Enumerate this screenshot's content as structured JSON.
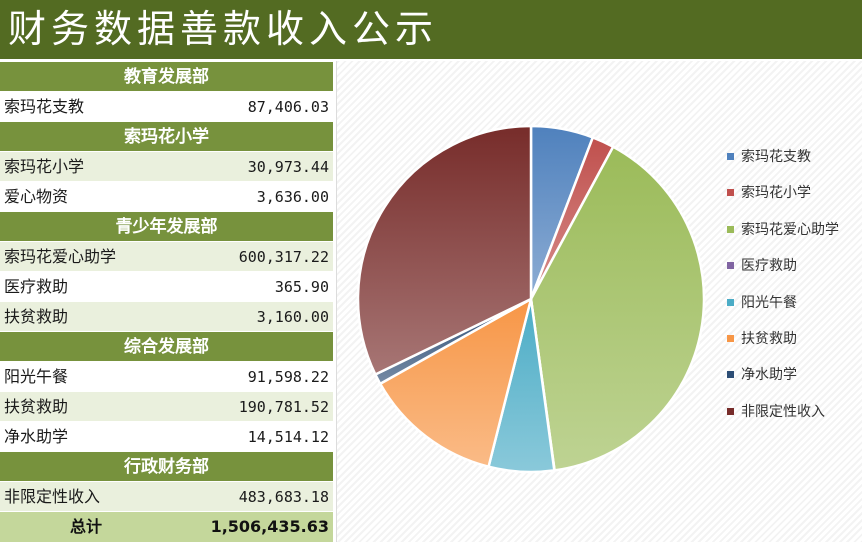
{
  "title": "财务数据善款收入公示",
  "table": {
    "sections": [
      {
        "header": "教育发展部",
        "rows": [
          {
            "name": "索玛花支教",
            "value": "87,406.03"
          }
        ]
      },
      {
        "header": "索玛花小学",
        "rows": [
          {
            "name": "索玛花小学",
            "value": "30,973.44"
          },
          {
            "name": "爱心物资",
            "value": "3,636.00"
          }
        ]
      },
      {
        "header": "青少年发展部",
        "rows": [
          {
            "name": "索玛花爱心助学",
            "value": "600,317.22"
          },
          {
            "name": "医疗救助",
            "value": "365.90"
          },
          {
            "name": "扶贫救助",
            "value": "3,160.00"
          }
        ]
      },
      {
        "header": "综合发展部",
        "rows": [
          {
            "name": "阳光午餐",
            "value": "91,598.22"
          },
          {
            "name": "扶贫救助",
            "value": "190,781.52"
          },
          {
            "name": "净水助学",
            "value": "14,514.12"
          }
        ]
      },
      {
        "header": "行政财务部",
        "rows": [
          {
            "name": "非限定性收入",
            "value": "483,683.18"
          }
        ]
      }
    ],
    "total_label": "总计",
    "total_value": "1,506,435.63"
  },
  "chart_data": {
    "type": "pie",
    "slices": [
      {
        "label": "索玛花支教",
        "value": 87406.03,
        "color": "#4f81bd"
      },
      {
        "label": "索玛花小学",
        "value": 30973.44,
        "color": "#c0504d"
      },
      {
        "label": "索玛花爱心助学",
        "value": 600317.22,
        "color": "#9bbb59"
      },
      {
        "label": "医疗救助",
        "value": 365.9,
        "color": "#8064a2"
      },
      {
        "label": "阳光午餐",
        "value": 91598.22,
        "color": "#4bacc6"
      },
      {
        "label": "扶贫救助",
        "value": 193941.52,
        "color": "#f79646"
      },
      {
        "label": "净水助学",
        "value": 14514.12,
        "color": "#2c4d75"
      },
      {
        "label": "非限定性收入",
        "value": 483683.18,
        "color": "#772c2a"
      }
    ],
    "legend": "right"
  }
}
